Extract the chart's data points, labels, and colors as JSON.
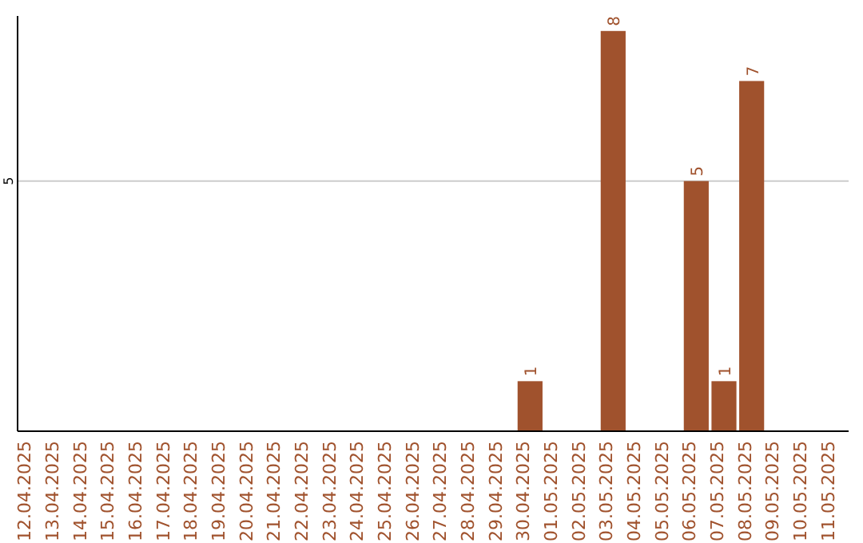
{
  "chart_data": {
    "type": "bar",
    "categories": [
      "12.04.2025",
      "13.04.2025",
      "14.04.2025",
      "15.04.2025",
      "16.04.2025",
      "17.04.2025",
      "18.04.2025",
      "19.04.2025",
      "20.04.2025",
      "21.04.2025",
      "22.04.2025",
      "23.04.2025",
      "24.04.2025",
      "25.04.2025",
      "26.04.2025",
      "27.04.2025",
      "28.04.2025",
      "29.04.2025",
      "30.04.2025",
      "01.05.2025",
      "02.05.2025",
      "03.05.2025",
      "04.05.2025",
      "05.05.2025",
      "06.05.2025",
      "07.05.2025",
      "08.05.2025",
      "09.05.2025",
      "10.05.2025",
      "11.05.2025"
    ],
    "values": [
      null,
      null,
      null,
      null,
      null,
      null,
      null,
      null,
      null,
      null,
      null,
      null,
      null,
      null,
      null,
      null,
      null,
      null,
      1,
      null,
      null,
      8,
      null,
      null,
      5,
      1,
      7,
      null,
      null,
      null
    ],
    "data_labels": true,
    "color": "#a0522d",
    "ylim": [
      0,
      8.3
    ],
    "ref_lines": [
      {
        "axis": "y",
        "value": 5,
        "label": "5",
        "color": "#cccccc"
      }
    ]
  }
}
